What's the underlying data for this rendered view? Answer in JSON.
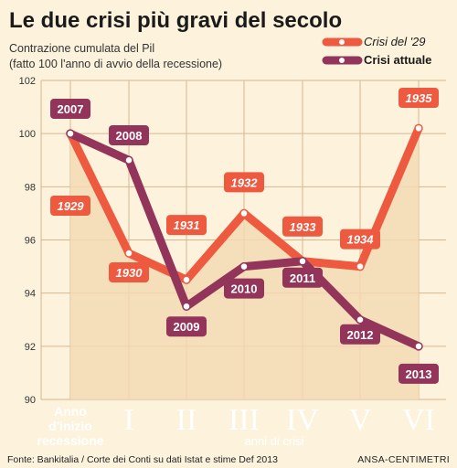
{
  "title": "Le due crisi più gravi del secolo",
  "subtitle_line1": "Contrazione cumulata del Pil",
  "subtitle_line2": "(fatto 100 l'anno di avvio della recessione)",
  "source": "Fonte: Bankitalia / Corte dei Conti su dati Istat e stime Def 2013",
  "credit": "ANSA-CENTIMETRI",
  "colors": {
    "background": "#fdf3dc",
    "area": "#f3d9b4",
    "grid": "#d8b690",
    "crisi29": "#ee5a40",
    "crisi_attuale": "#93355a",
    "roman": "#f2dcc0"
  },
  "chart_data": {
    "type": "line",
    "categories": [
      "Anno d'inizio recessione",
      "I",
      "II",
      "III",
      "IV",
      "V",
      "VI"
    ],
    "category_start_lines": [
      "Anno",
      "d'inizio",
      "recessione"
    ],
    "xlabel": "anni di crisi",
    "ylabel": "",
    "ylim": [
      90,
      102
    ],
    "yticks": [
      "90",
      "92",
      "94",
      "96",
      "98",
      "100",
      "102"
    ],
    "grid": true,
    "legend_position": "top-right",
    "series": [
      {
        "name": "Crisi del '29",
        "values": [
          100,
          95.5,
          94.5,
          97,
          95.2,
          95,
          100.2
        ],
        "labels": [
          "1929",
          "1930",
          "1931",
          "1932",
          "1933",
          "1934",
          "1935"
        ]
      },
      {
        "name": "Crisi attuale",
        "values": [
          100,
          99,
          93.5,
          95,
          95.2,
          93,
          92
        ],
        "labels": [
          "2007",
          "2008",
          "2009",
          "2010",
          "2011",
          "2012",
          "2013"
        ]
      }
    ]
  }
}
